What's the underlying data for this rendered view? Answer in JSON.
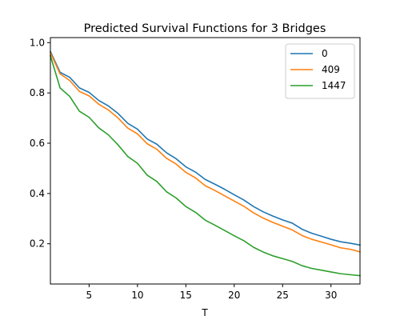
{
  "chart_data": {
    "type": "line",
    "title": "Predicted Survival Functions for 3 Bridges",
    "xlabel": "T",
    "ylabel": "",
    "xlim": [
      1,
      33
    ],
    "ylim": [
      0.04,
      1.02
    ],
    "xticks": [
      5,
      10,
      15,
      20,
      25,
      30
    ],
    "yticks": [
      0.2,
      0.4,
      0.6,
      0.8,
      1.0
    ],
    "xtick_labels": [
      "5",
      "10",
      "15",
      "20",
      "25",
      "30"
    ],
    "ytick_labels": [
      "0.2",
      "0.4",
      "0.6",
      "0.8",
      "1.0"
    ],
    "grid": false,
    "legend_position": "top-right",
    "x": [
      1,
      2,
      3,
      4,
      5,
      6,
      7,
      8,
      9,
      10,
      11,
      12,
      13,
      14,
      15,
      16,
      17,
      18,
      19,
      20,
      21,
      22,
      23,
      24,
      25,
      26,
      27,
      28,
      29,
      30,
      31,
      32,
      33
    ],
    "series": [
      {
        "name": "0",
        "color": "#1f77b4",
        "values": [
          0.965,
          0.882,
          0.862,
          0.82,
          0.802,
          0.77,
          0.748,
          0.718,
          0.679,
          0.656,
          0.617,
          0.596,
          0.562,
          0.538,
          0.506,
          0.485,
          0.456,
          0.437,
          0.417,
          0.395,
          0.374,
          0.348,
          0.327,
          0.31,
          0.295,
          0.282,
          0.258,
          0.242,
          0.23,
          0.218,
          0.208,
          0.202,
          0.195
        ]
      },
      {
        "name": "409",
        "color": "#ff7f0e",
        "values": [
          0.96,
          0.876,
          0.849,
          0.806,
          0.788,
          0.755,
          0.732,
          0.7,
          0.66,
          0.637,
          0.598,
          0.576,
          0.54,
          0.517,
          0.484,
          0.462,
          0.431,
          0.412,
          0.391,
          0.37,
          0.349,
          0.323,
          0.302,
          0.285,
          0.27,
          0.255,
          0.233,
          0.218,
          0.207,
          0.196,
          0.184,
          0.178,
          0.168
        ]
      },
      {
        "name": "1447",
        "color": "#2ca02c",
        "values": [
          0.948,
          0.82,
          0.786,
          0.727,
          0.703,
          0.661,
          0.633,
          0.593,
          0.547,
          0.52,
          0.473,
          0.448,
          0.407,
          0.382,
          0.348,
          0.325,
          0.294,
          0.274,
          0.253,
          0.232,
          0.212,
          0.186,
          0.167,
          0.152,
          0.141,
          0.13,
          0.113,
          0.102,
          0.095,
          0.088,
          0.081,
          0.077,
          0.073
        ]
      }
    ]
  }
}
